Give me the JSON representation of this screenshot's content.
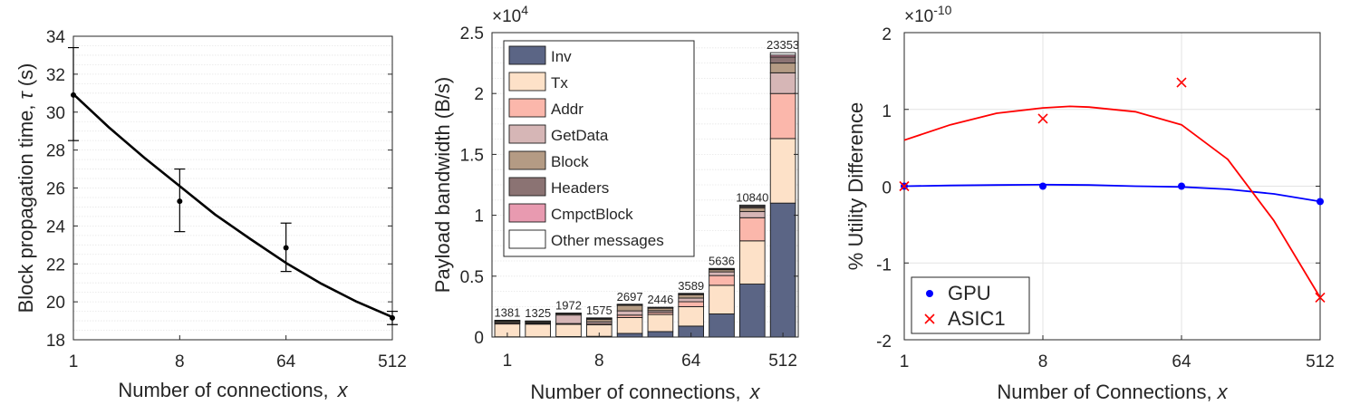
{
  "chart_data": [
    {
      "type": "line",
      "title": "",
      "xlabel": "Number of connections,",
      "xlabel_var": "x",
      "ylabel": "Block propagation time,",
      "ylabel_var": "τ",
      "ylabel_unit": "(s)",
      "xscale": "log2",
      "xlim": [
        1,
        512
      ],
      "ylim": [
        18,
        34
      ],
      "xticks": [
        1,
        8,
        64,
        512
      ],
      "xtick_labels": [
        "1",
        "8",
        "64",
        "512"
      ],
      "yticks": [
        18,
        20,
        22,
        24,
        26,
        28,
        30,
        32,
        34
      ],
      "ytick_labels": [
        "18",
        "20",
        "22",
        "24",
        "26",
        "28",
        "30",
        "32",
        "34"
      ],
      "grid": "minor horizontal",
      "points": [
        {
          "x": 1,
          "y": 30.9,
          "err_low": 28.5,
          "err_high": 33.4
        },
        {
          "x": 8,
          "y": 25.3,
          "err_low": 23.7,
          "err_high": 27.0
        },
        {
          "x": 64,
          "y": 22.85,
          "err_low": 21.6,
          "err_high": 24.15
        },
        {
          "x": 512,
          "y": 19.15,
          "err_low": 18.8,
          "err_high": 19.5
        }
      ],
      "fit": {
        "x": [
          1,
          2,
          4,
          8,
          16,
          32,
          64,
          128,
          256,
          512
        ],
        "y": [
          30.95,
          29.2,
          27.6,
          26.1,
          24.6,
          23.3,
          22.05,
          20.95,
          20.0,
          19.2
        ]
      }
    },
    {
      "type": "bar",
      "stacked": true,
      "title": "",
      "xlabel": "Number of connections,",
      "xlabel_var": "x",
      "ylabel": "Payload bandwidth (B/s)",
      "y_exponent": "×10",
      "y_exponent_power": "4",
      "ylim": [
        0,
        25000
      ],
      "yticks": [
        0,
        5000,
        10000,
        15000,
        20000,
        25000
      ],
      "ytick_labels": [
        "0",
        "0.5",
        "1",
        "1.5",
        "2",
        "2.5"
      ],
      "categories": [
        1,
        2,
        4,
        8,
        16,
        32,
        64,
        128,
        256,
        512
      ],
      "xtick_labels": [
        "1",
        "8",
        "64",
        "512"
      ],
      "xtick_categories": [
        1,
        8,
        64,
        512
      ],
      "totals": [
        1381,
        1325,
        1972,
        1575,
        2697,
        2446,
        3589,
        5636,
        10840,
        23353
      ],
      "total_labels": [
        "1381",
        "1325",
        "1972",
        "1575",
        "2697",
        "2446",
        "3589",
        "5636",
        "10840",
        "23353"
      ],
      "legend_position": "top-left",
      "series": [
        {
          "name": "Inv",
          "color": "#5b6585",
          "values": [
            20,
            20,
            40,
            60,
            300,
            450,
            900,
            1900,
            4350,
            11000
          ]
        },
        {
          "name": "Tx",
          "color": "#fde1c8",
          "values": [
            1050,
            1040,
            1000,
            950,
            1300,
            1400,
            1600,
            2350,
            3550,
            5300
          ]
        },
        {
          "name": "Addr",
          "color": "#fbb7ab",
          "values": [
            80,
            70,
            70,
            100,
            200,
            170,
            400,
            800,
            1900,
            3700
          ]
        },
        {
          "name": "GetData",
          "color": "#d6b6b6",
          "values": [
            50,
            50,
            700,
            150,
            350,
            150,
            300,
            300,
            500,
            1700
          ]
        },
        {
          "name": "Block",
          "color": "#b49b84",
          "values": [
            100,
            90,
            100,
            200,
            450,
            200,
            280,
            180,
            300,
            800
          ]
        },
        {
          "name": "Headers",
          "color": "#8b7373",
          "values": [
            40,
            30,
            30,
            60,
            60,
            40,
            60,
            50,
            120,
            500
          ]
        },
        {
          "name": "CmpctBlock",
          "color": "#e89ab0",
          "values": [
            11,
            5,
            12,
            15,
            17,
            16,
            19,
            26,
            40,
            153
          ]
        },
        {
          "name": "Other messages",
          "color": "#ffffff",
          "values": [
            30,
            20,
            20,
            40,
            20,
            20,
            30,
            30,
            80,
            200
          ]
        }
      ]
    },
    {
      "type": "line",
      "title": "",
      "xlabel": "Number of Connections,",
      "xlabel_var": "x",
      "ylabel": "% Utility Difference",
      "y_exponent": "×10",
      "y_exponent_power": "-10",
      "xscale": "log2",
      "xlim": [
        1,
        512
      ],
      "ylim": [
        -2,
        2
      ],
      "xticks": [
        1,
        8,
        64,
        512
      ],
      "xtick_labels": [
        "1",
        "8",
        "64",
        "512"
      ],
      "yticks": [
        -2,
        -1,
        0,
        1,
        2
      ],
      "ytick_labels": [
        "-2",
        "-1",
        "0",
        "1",
        "2"
      ],
      "grid": true,
      "legend_position": "bottom-left",
      "series": [
        {
          "name": "GPU",
          "color": "#0000ff",
          "marker": "dot",
          "points": {
            "x": [
              1,
              8,
              64,
              512
            ],
            "y": [
              0.0,
              0.0,
              0.0,
              -0.2
            ]
          },
          "fit": {
            "x": [
              1,
              2,
              4,
              8,
              16,
              32,
              64,
              128,
              256,
              512
            ],
            "y": [
              0.0,
              0.01,
              0.015,
              0.02,
              0.015,
              0.0,
              -0.01,
              -0.04,
              -0.1,
              -0.2
            ]
          }
        },
        {
          "name": "ASIC1",
          "color": "#ff0000",
          "marker": "x",
          "points": {
            "x": [
              1,
              8,
              64,
              512
            ],
            "y": [
              0.0,
              0.88,
              1.35,
              -1.45
            ]
          },
          "fit": {
            "x": [
              1,
              2,
              4,
              8,
              12,
              16,
              32,
              64,
              128,
              256,
              512
            ],
            "y": [
              0.6,
              0.8,
              0.95,
              1.02,
              1.04,
              1.03,
              0.97,
              0.8,
              0.35,
              -0.45,
              -1.45
            ]
          }
        }
      ]
    }
  ]
}
